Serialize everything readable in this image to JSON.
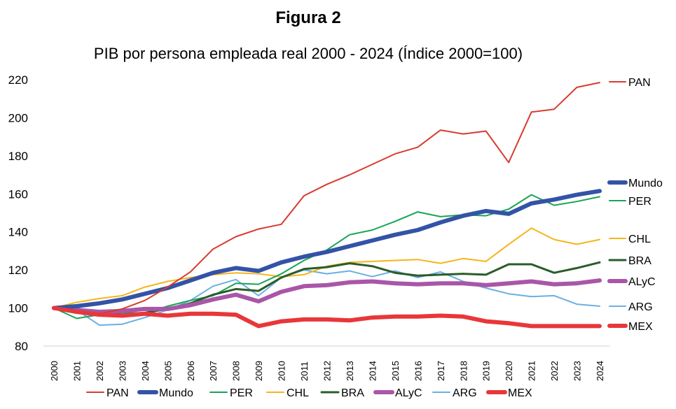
{
  "figure_label": "Figura 2",
  "chart_data": {
    "type": "line",
    "title": "PIB por persona empleada real 2000 - 2024 (Índice 2000=100)",
    "xlabel": "",
    "ylabel": "",
    "ylim": [
      80,
      220
    ],
    "yticks": [
      80,
      100,
      120,
      140,
      160,
      180,
      200,
      220
    ],
    "grid": false,
    "legend": "bottom",
    "categories": [
      "2000",
      "2001",
      "2002",
      "2003",
      "2004",
      "2005",
      "2006",
      "2007",
      "2008",
      "2009",
      "2010",
      "2011",
      "2012",
      "2013",
      "2014",
      "2015",
      "2016",
      "2017",
      "2018",
      "2019",
      "2020",
      "2021",
      "2022",
      "2023",
      "2024"
    ],
    "series": [
      {
        "name": "PAN",
        "color": "#d83b2e",
        "width": 2,
        "values": [
          100,
          98,
          97,
          99.5,
          104,
          111,
          119,
          131,
          137.5,
          141.5,
          144,
          159,
          165,
          170,
          175.5,
          181,
          184.5,
          193.5,
          191.5,
          193,
          176.5,
          203,
          204.5,
          216,
          218.5
        ]
      },
      {
        "name": "Mundo",
        "color": "#3353a6",
        "width": 6,
        "values": [
          100,
          101,
          102.5,
          104.5,
          107.5,
          110.5,
          114.5,
          118.5,
          121,
          119.5,
          124,
          127,
          129.5,
          132.5,
          135.5,
          138.5,
          141,
          145,
          148.5,
          151,
          149.5,
          155,
          157,
          159.5,
          161.5
        ]
      },
      {
        "name": "PER",
        "color": "#18a454",
        "width": 2,
        "values": [
          100,
          94.5,
          96.5,
          97.5,
          97.5,
          101,
          104,
          106.5,
          113,
          112.5,
          118,
          125,
          130.5,
          138.5,
          141,
          145.5,
          150.5,
          148,
          149,
          148.5,
          152,
          159.5,
          154,
          156,
          158.5
        ]
      },
      {
        "name": "CHL",
        "color": "#f5b51c",
        "width": 2,
        "values": [
          100,
          103,
          105,
          106.5,
          111,
          114,
          116,
          117.5,
          118.5,
          118,
          116.5,
          117.5,
          122,
          124,
          124.5,
          125,
          125.5,
          123.5,
          126,
          124.5,
          133.5,
          142,
          136,
          133.5,
          136
        ]
      },
      {
        "name": "BRA",
        "color": "#2a5c2a",
        "width": 3,
        "values": [
          100,
          98,
          97.5,
          96.5,
          97.5,
          99.5,
          102.5,
          107,
          110,
          109,
          116,
          120.5,
          121.5,
          123.5,
          122,
          118.5,
          117,
          117.5,
          118,
          117.5,
          123,
          123,
          118.5,
          121,
          124
        ]
      },
      {
        "name": "ALyC",
        "color": "#a956a8",
        "width": 6,
        "values": [
          100,
          99,
          98,
          98.5,
          99.5,
          99.5,
          101.5,
          104.5,
          107,
          103.5,
          108.5,
          111.5,
          112,
          113.5,
          114,
          113,
          112.5,
          113,
          113,
          112,
          113,
          114,
          112.5,
          113,
          114.5
        ]
      },
      {
        "name": "ARG",
        "color": "#6aafe2",
        "width": 2,
        "values": [
          100,
          99,
          91,
          91.5,
          95,
          99,
          104,
          111.5,
          115,
          106.5,
          116,
          120,
          118,
          119.5,
          116.5,
          119.5,
          116,
          119,
          114,
          110.5,
          107.5,
          106,
          106.5,
          102,
          101
        ]
      },
      {
        "name": "MEX",
        "color": "#e8373a",
        "width": 6,
        "values": [
          100,
          98,
          96.5,
          96,
          97,
          96,
          97,
          97,
          96.5,
          90.5,
          93,
          94,
          94,
          93.5,
          95,
          95.5,
          95.5,
          96,
          95.5,
          93,
          92,
          90.5,
          90.5,
          90.5,
          90.5
        ]
      }
    ]
  }
}
